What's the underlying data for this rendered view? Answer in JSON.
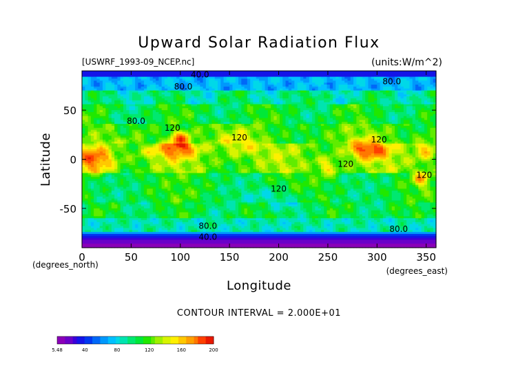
{
  "chart_data": {
    "type": "heatmap",
    "title": "Upward Solar Radiation Flux",
    "file_label": "[USWRF_1993-09_NCEP.nc]",
    "units_label": "(units:W/m^2)",
    "xlabel": "Longitude",
    "ylabel": "Latitude",
    "x_units_label": "(degrees_east)",
    "y_units_label": "(degrees_north)",
    "xlim": [
      0,
      360
    ],
    "ylim": [
      -90,
      90
    ],
    "x_ticks": [
      {
        "value": 0,
        "label": "0"
      },
      {
        "value": 50,
        "label": "50"
      },
      {
        "value": 100,
        "label": "100"
      },
      {
        "value": 150,
        "label": "150"
      },
      {
        "value": 200,
        "label": "200"
      },
      {
        "value": 250,
        "label": "250"
      },
      {
        "value": 300,
        "label": "300"
      },
      {
        "value": 350,
        "label": "350"
      }
    ],
    "y_ticks": [
      {
        "value": 50,
        "label": "50"
      },
      {
        "value": 0,
        "label": "0"
      },
      {
        "value": -50,
        "label": "-50"
      }
    ],
    "contour_interval_label": "CONTOUR INTERVAL = 2.000E+01",
    "contour_labels": [
      {
        "lon": 120,
        "lat": 86,
        "text": "40.0"
      },
      {
        "lon": 103,
        "lat": 74,
        "text": "80.0"
      },
      {
        "lon": 315,
        "lat": 79,
        "text": "80.0"
      },
      {
        "lon": 55,
        "lat": 39,
        "text": "80.0"
      },
      {
        "lon": 92,
        "lat": 32,
        "text": "120"
      },
      {
        "lon": 160,
        "lat": 22,
        "text": "120"
      },
      {
        "lon": 302,
        "lat": 20,
        "text": "120"
      },
      {
        "lon": 268,
        "lat": -5,
        "text": "120"
      },
      {
        "lon": 200,
        "lat": -30,
        "text": "120"
      },
      {
        "lon": 348,
        "lat": -16,
        "text": "120"
      },
      {
        "lon": 128,
        "lat": -68,
        "text": "80.0"
      },
      {
        "lon": 322,
        "lat": -71,
        "text": "80.0"
      },
      {
        "lon": 128,
        "lat": -79,
        "text": "40.0"
      }
    ],
    "colorbar": {
      "min_label": "5.48",
      "tick_labels": [
        "40",
        "80",
        "120",
        "160",
        "200"
      ],
      "min": 5.48,
      "max": 200
    },
    "colors": [
      "#8a00b8",
      "#6a00c8",
      "#3c00d8",
      "#1414e8",
      "#0038f0",
      "#0068f8",
      "#0098fc",
      "#00c0ff",
      "#00d8e8",
      "#00e4b0",
      "#00e870",
      "#00e838",
      "#20e800",
      "#60ec00",
      "#a0f000",
      "#d8f400",
      "#fff000",
      "#ffc800",
      "#ffa000",
      "#ff7800",
      "#ff4000",
      "#e81800"
    ]
  }
}
